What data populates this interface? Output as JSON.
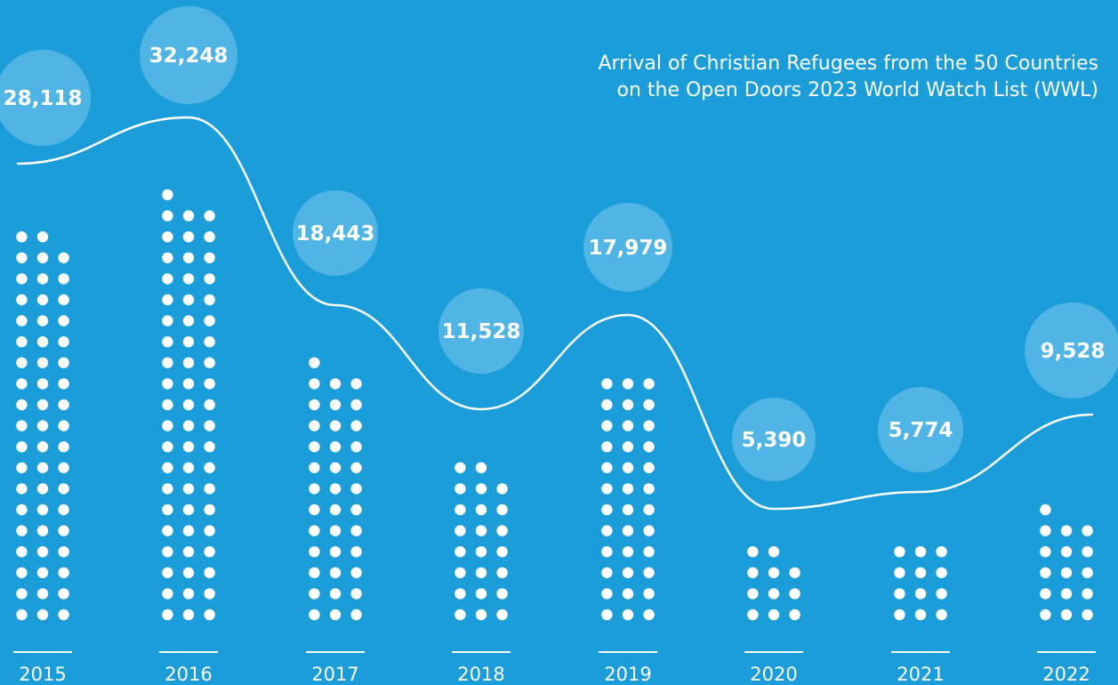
{
  "colors": {
    "background": "#1a9dd9",
    "bubble": "#5ab9e6",
    "foreground": "#ffffff"
  },
  "chart_data": {
    "type": "line",
    "title": [
      "Arrival of Christian Refugees from the 50 Countries",
      "on the Open Doors 2023 World Watch List (WWL)"
    ],
    "categories": [
      "2015",
      "2016",
      "2017",
      "2018",
      "2019",
      "2020",
      "2021",
      "2022"
    ],
    "values": [
      28118,
      32248,
      18443,
      11528,
      17979,
      5390,
      5774,
      9528
    ],
    "value_labels": [
      "28,118",
      "32,248",
      "18,443",
      "11,528",
      "17,979",
      "5,390",
      "5,774",
      "9,528"
    ],
    "dot_columns": [
      {
        "year": "2015",
        "full_rows": 18,
        "top_row": 2
      },
      {
        "year": "2016",
        "full_rows": 20,
        "top_row": 1
      },
      {
        "year": "2017",
        "full_rows": 12,
        "top_row": 1
      },
      {
        "year": "2018",
        "full_rows": 7,
        "top_row": 2
      },
      {
        "year": "2019",
        "full_rows": 12,
        "top_row": 0
      },
      {
        "year": "2020",
        "full_rows": 3,
        "top_row": 2
      },
      {
        "year": "2021",
        "full_rows": 4,
        "top_row": 0
      },
      {
        "year": "2022",
        "full_rows": 5,
        "top_row": 1
      }
    ],
    "ylim": [
      0,
      33000
    ],
    "grid": false,
    "legend": "none"
  }
}
